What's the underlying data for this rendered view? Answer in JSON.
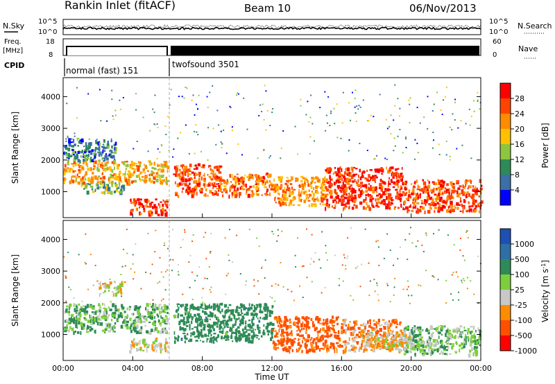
{
  "header": {
    "station": "Rankin Inlet (fitACF)",
    "beam": "Beam 10",
    "date": "06/Nov/2013"
  },
  "status_panels": {
    "nsky_label": "N.Sky",
    "nsearch_label": "N.Search",
    "noise_ticks": [
      "10^5",
      "10^0"
    ],
    "freq_label_1": "Freq.",
    "freq_label_2": "[MHz]",
    "freq_ticks": [
      "18",
      "8"
    ],
    "nave_label": "Nave",
    "nave_ticks": [
      "60",
      "0"
    ],
    "cpid_label": "CPID",
    "cpid_segments": [
      {
        "name": "normal (fast) 151",
        "start_hour": 0.0,
        "end_hour": 6.1
      },
      {
        "name": "twofsound 3501",
        "start_hour": 6.1,
        "end_hour": 24.0
      }
    ]
  },
  "power_colorbar": {
    "label": "Power [dB]",
    "ticks": [
      "28",
      "24",
      "20",
      "16",
      "12",
      "8",
      "4"
    ],
    "colors": [
      "#ff0000",
      "#ff4400",
      "#ff8c00",
      "#ffc000",
      "#8cc63e",
      "#2e8b57",
      "#3a6fa8",
      "#0000ff"
    ]
  },
  "velocity_colorbar": {
    "label": "Velocity [m s-1]",
    "label_parts": [
      "Velocity [m s",
      "-1",
      "]"
    ],
    "ticks": [
      "1000",
      "500",
      "100",
      "25",
      "-25",
      "-100",
      "-500",
      "-1000"
    ],
    "colors": [
      "#1e50b4",
      "#2e6fa8",
      "#2e8b57",
      "#7ccf3a",
      "#c8c8c8",
      "#ff8c00",
      "#ff5000",
      "#ff0000"
    ]
  },
  "chart_data": [
    {
      "type": "heatmap",
      "title": "",
      "xlabel": "",
      "ylabel": "Slant Range [km]",
      "xlim": [
        0,
        24
      ],
      "ylim": [
        180,
        4600
      ],
      "x_ticks": [
        "00:00",
        "04:00",
        "08:00",
        "12:00",
        "16:00",
        "20:00",
        "00:00"
      ],
      "y_ticks": [
        1000,
        2000,
        3000,
        4000
      ],
      "quantity": "Power [dB]",
      "bands": [
        {
          "x": [
            0.0,
            6.0
          ],
          "y": [
            1300,
            2000
          ],
          "value": 20
        },
        {
          "x": [
            1.0,
            3.5
          ],
          "y": [
            1000,
            1300
          ],
          "value": 12
        },
        {
          "x": [
            3.8,
            6.0
          ],
          "y": [
            300,
            800
          ],
          "value": 28
        },
        {
          "x": [
            6.3,
            9.0
          ],
          "y": [
            900,
            1900
          ],
          "value": 26
        },
        {
          "x": [
            9.0,
            12.0
          ],
          "y": [
            900,
            1600
          ],
          "value": 24
        },
        {
          "x": [
            12.0,
            15.0
          ],
          "y": [
            600,
            1500
          ],
          "value": 22
        },
        {
          "x": [
            15.0,
            19.5
          ],
          "y": [
            500,
            1800
          ],
          "value": 28
        },
        {
          "x": [
            19.5,
            24.0
          ],
          "y": [
            400,
            1400
          ],
          "value": 26
        },
        {
          "x": [
            0.0,
            3.0
          ],
          "y": [
            2000,
            2700
          ],
          "value": 8
        }
      ]
    },
    {
      "type": "heatmap",
      "title": "",
      "xlabel": "Time UT",
      "ylabel": "Slant Range [km]",
      "xlim": [
        0,
        24
      ],
      "ylim": [
        180,
        4600
      ],
      "x_ticks": [
        "00:00",
        "04:00",
        "08:00",
        "12:00",
        "16:00",
        "20:00",
        "00:00"
      ],
      "y_ticks": [
        1000,
        2000,
        3000,
        4000
      ],
      "quantity": "Velocity [m s-1]",
      "bands": [
        {
          "x": [
            0.0,
            6.0
          ],
          "y": [
            1100,
            2000
          ],
          "value": 100
        },
        {
          "x": [
            2.0,
            3.5
          ],
          "y": [
            2300,
            2700
          ],
          "value": 0
        },
        {
          "x": [
            3.8,
            6.0
          ],
          "y": [
            500,
            900
          ],
          "value": 0
        },
        {
          "x": [
            6.3,
            12.0
          ],
          "y": [
            800,
            2000
          ],
          "value": 300
        },
        {
          "x": [
            12.0,
            16.0
          ],
          "y": [
            500,
            1600
          ],
          "value": -200
        },
        {
          "x": [
            16.0,
            19.5
          ],
          "y": [
            500,
            1500
          ],
          "value": -80
        },
        {
          "x": [
            19.5,
            24.0
          ],
          "y": [
            400,
            1300
          ],
          "value": 80
        },
        {
          "x": [
            17.0,
            20.0
          ],
          "y": [
            600,
            1100
          ],
          "value": 0
        }
      ]
    }
  ]
}
